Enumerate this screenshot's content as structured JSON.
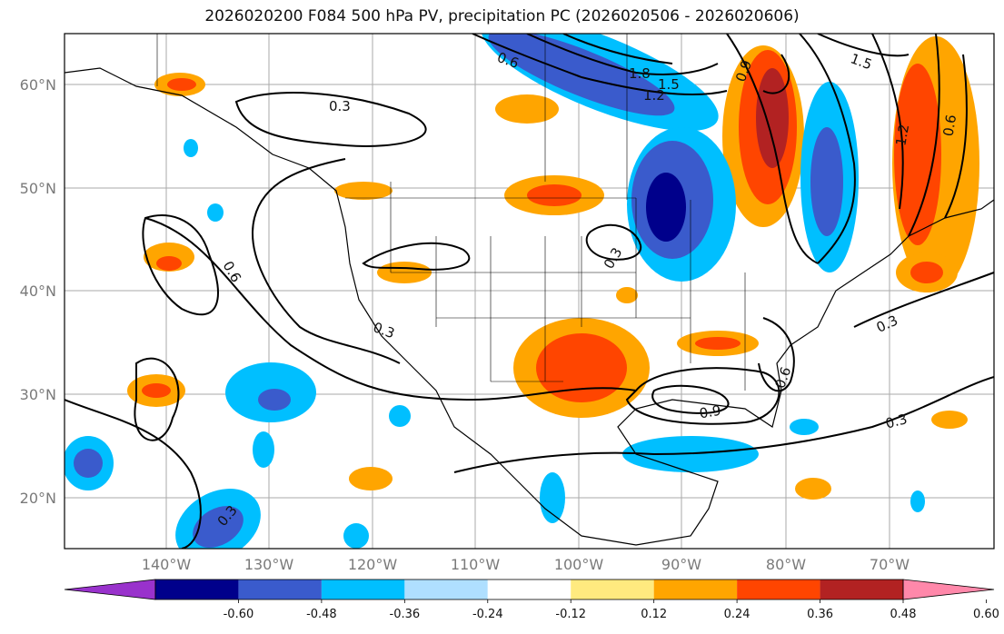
{
  "title": "2026020200 F084 500 hPa PV, precipitation PC (2026020506 - 2026020606)",
  "lat_labels": [
    "60°N",
    "50°N",
    "40°N",
    "30°N",
    "20°N"
  ],
  "lon_labels": [
    "140°W",
    "130°W",
    "120°W",
    "110°W",
    "100°W",
    "90°W",
    "80°W",
    "70°W"
  ],
  "contour_labels": [
    "0.3",
    "0.6",
    "0.9",
    "1.2",
    "1.5",
    "1.8"
  ],
  "colorbar": {
    "colors": [
      "#9932cc",
      "#00008b",
      "#3a5bcc",
      "#00bfff",
      "#afdfff",
      "#ffffff",
      "#ffea7f",
      "#ffa500",
      "#ff4500",
      "#b22222",
      "#ff88aa"
    ],
    "tick_labels": [
      "-0.60",
      "-0.48",
      "-0.36",
      "-0.24",
      "-0.12",
      "0.12",
      "0.24",
      "0.36",
      "0.48",
      "0.60"
    ]
  }
}
